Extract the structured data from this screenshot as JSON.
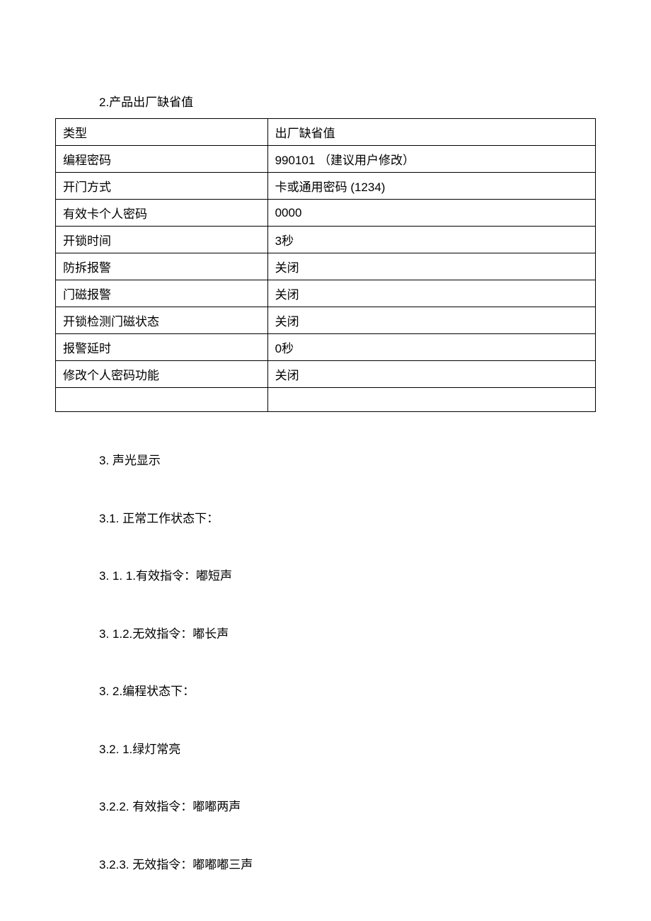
{
  "section2": {
    "title": "2.产品出厂缺省值",
    "table": {
      "columns": [
        "类型",
        "出厂缺省值"
      ],
      "rows": [
        [
          "编程密码",
          "990101   （建议用户修改）"
        ],
        [
          "开门方式",
          "卡或通用密码   (1234)"
        ],
        [
          "有效卡个人密码",
          "0000"
        ],
        [
          "开锁时间",
          "3秒"
        ],
        [
          "防拆报警",
          "关闭"
        ],
        [
          "门磁报警",
          "关闭"
        ],
        [
          "开锁检测门磁状态",
          "关闭"
        ],
        [
          "报警延时",
          "0秒"
        ],
        [
          "修改个人密码功能",
          "关闭"
        ],
        [
          "",
          ""
        ]
      ]
    }
  },
  "section3": {
    "title": "3.   声光显示",
    "items": [
      "3.1.     正常工作状态下：",
      "3. 1. 1.有效指令：嘟短声",
      "3. 1.2.无效指令：嘟长声",
      "3. 2.编程状态下：",
      "3.2.    1.绿灯常亮",
      "3.2.2.      有效指令：嘟嘟两声",
      "3.2.3.     无效指令：嘟嘟嘟三声"
    ]
  }
}
